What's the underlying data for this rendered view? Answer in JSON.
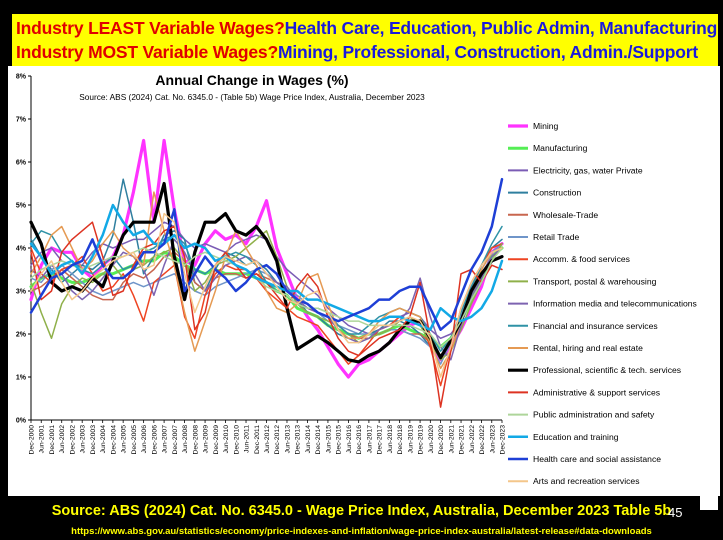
{
  "banner": {
    "line1_question": "Industry LEAST Variable Wages?",
    "line1_answer": "Health Care, Education, Public Admin, Manufacturing",
    "line2_question": "Industry MOST Variable Wages?",
    "line2_answer": "Mining, Professional, Construction, Admin./Support"
  },
  "footer": {
    "source": "Source: ABS (2024) Cat. No. 6345.0 - Wage Price Index, Australia, December 2023 Table 5b",
    "url": "https://www.abs.gov.au/statistics/economy/price-indexes-and-inflation/wage-price-index-australia/latest-release#data-downloads",
    "page_number": "45"
  },
  "chart_data": {
    "type": "line",
    "title": "Annual Change in Wages (%)",
    "subtitle": "Source: ABS (2024) Cat. No. 6345.0 - (Table 5b) Wage Price Index, Australia, December 2023",
    "xlabel": "",
    "ylabel": "",
    "ylim": [
      0,
      8
    ],
    "yticks": [
      "0%",
      "1%",
      "2%",
      "3%",
      "4%",
      "5%",
      "6%",
      "7%",
      "8%"
    ],
    "grid": false,
    "legend_position": "right",
    "categories": [
      "Dec-2000",
      "Jun-2001",
      "Dec-2001",
      "Jun-2002",
      "Dec-2002",
      "Jun-2003",
      "Dec-2003",
      "Jun-2004",
      "Dec-2004",
      "Jun-2005",
      "Dec-2005",
      "Jun-2006",
      "Dec-2006",
      "Jun-2007",
      "Dec-2007",
      "Jun-2008",
      "Dec-2008",
      "Jun-2009",
      "Dec-2009",
      "Jun-2010",
      "Dec-2010",
      "Jun-2011",
      "Dec-2011",
      "Jun-2012",
      "Dec-2012",
      "Jun-2013",
      "Dec-2013",
      "Jun-2014",
      "Dec-2014",
      "Jun-2015",
      "Dec-2015",
      "Jun-2016",
      "Dec-2016",
      "Jun-2017",
      "Dec-2017",
      "Jun-2018",
      "Dec-2018",
      "Jun-2019",
      "Dec-2019",
      "Jun-2020",
      "Dec-2020",
      "Jun-2021",
      "Dec-2021",
      "Jun-2022",
      "Dec-2022",
      "Jun-2023",
      "Dec-2023"
    ],
    "series": [
      {
        "name": "Mining",
        "color": "#ff33ff",
        "width": 3.2,
        "values": [
          2.8,
          3.6,
          4.0,
          3.9,
          3.9,
          3.5,
          3.3,
          3.6,
          3.8,
          4.3,
          5.3,
          6.5,
          4.6,
          6.5,
          4.9,
          3.7,
          3.6,
          4.1,
          4.4,
          4.2,
          4.3,
          4.1,
          4.5,
          5.1,
          4.0,
          3.4,
          2.8,
          2.4,
          2.1,
          1.7,
          1.3,
          1.0,
          1.3,
          1.4,
          1.6,
          1.8,
          2.0,
          2.2,
          2.3,
          1.8,
          1.4,
          1.7,
          2.1,
          2.6,
          3.1,
          3.9,
          4.1
        ]
      },
      {
        "name": "Manufacturing",
        "color": "#55ee55",
        "width": 3,
        "values": [
          3.1,
          3.3,
          3.4,
          3.3,
          3.2,
          3.2,
          3.3,
          3.4,
          3.4,
          3.5,
          3.6,
          3.7,
          3.7,
          3.9,
          3.8,
          3.6,
          3.5,
          3.4,
          3.5,
          3.4,
          3.4,
          3.4,
          3.3,
          3.2,
          3.0,
          2.9,
          2.6,
          2.5,
          2.4,
          2.2,
          2.1,
          2.0,
          1.9,
          2.0,
          2.0,
          2.1,
          2.2,
          2.1,
          2.0,
          1.9,
          1.7,
          1.9,
          2.3,
          2.8,
          3.3,
          3.8,
          4.0
        ]
      },
      {
        "name": "Electricity, gas, water Private",
        "color": "#7b5cb5",
        "width": 1.5,
        "values": [
          3.6,
          3.9,
          4.0,
          3.7,
          3.6,
          3.6,
          3.9,
          4.1,
          4.0,
          4.1,
          4.2,
          4.2,
          4.4,
          4.6,
          4.5,
          4.2,
          4.0,
          4.1,
          4.0,
          3.9,
          4.1,
          4.2,
          4.3,
          4.2,
          3.8,
          3.5,
          3.3,
          3.1,
          2.9,
          2.6,
          2.4,
          2.2,
          2.1,
          2.0,
          2.1,
          2.2,
          2.4,
          2.5,
          2.4,
          2.1,
          1.9,
          2.0,
          2.3,
          2.8,
          3.3,
          3.8,
          4.0
        ]
      },
      {
        "name": "Construction",
        "color": "#2f7f9f",
        "width": 1.5,
        "values": [
          4.2,
          3.8,
          3.5,
          3.2,
          3.4,
          3.6,
          3.5,
          3.7,
          4.3,
          5.6,
          4.6,
          3.4,
          3.8,
          4.3,
          4.4,
          4.2,
          3.2,
          3.0,
          3.5,
          3.9,
          3.8,
          3.6,
          3.7,
          3.5,
          3.2,
          3.0,
          2.8,
          2.5,
          2.4,
          2.2,
          2.0,
          1.9,
          1.9,
          2.0,
          2.1,
          2.3,
          2.3,
          2.2,
          2.0,
          1.7,
          1.5,
          1.8,
          2.4,
          3.0,
          3.6,
          4.0,
          4.2
        ]
      },
      {
        "name": "Wholesale-Trade",
        "color": "#c8664f",
        "width": 1.5,
        "values": [
          3.0,
          3.1,
          3.3,
          3.5,
          3.3,
          3.1,
          2.9,
          2.8,
          2.8,
          3.2,
          3.4,
          3.3,
          3.5,
          3.8,
          3.9,
          3.7,
          3.2,
          3.0,
          3.3,
          3.4,
          3.4,
          3.3,
          3.4,
          3.3,
          3.2,
          3.0,
          2.8,
          2.6,
          2.5,
          2.4,
          2.2,
          2.0,
          1.9,
          1.9,
          2.0,
          2.1,
          2.1,
          2.0,
          2.0,
          1.8,
          1.5,
          1.8,
          2.3,
          2.9,
          3.4,
          3.7,
          3.8
        ]
      },
      {
        "name": "Retail Trade",
        "color": "#6f95c9",
        "width": 1.5,
        "values": [
          3.3,
          3.2,
          3.5,
          3.6,
          3.4,
          3.2,
          3.0,
          2.9,
          3.0,
          3.1,
          3.2,
          3.1,
          3.2,
          3.3,
          3.4,
          3.2,
          3.0,
          2.9,
          3.1,
          3.2,
          3.3,
          3.4,
          3.5,
          3.4,
          3.2,
          3.0,
          2.9,
          2.7,
          2.5,
          2.3,
          2.2,
          2.1,
          2.0,
          2.0,
          2.0,
          2.1,
          2.1,
          2.0,
          1.9,
          1.7,
          1.3,
          1.8,
          2.4,
          3.0,
          3.5,
          3.9,
          4.1
        ]
      },
      {
        "name": "Accomm. & food services",
        "color": "#ee4422",
        "width": 1.5,
        "values": [
          4.0,
          3.4,
          3.2,
          3.5,
          3.6,
          3.8,
          3.4,
          3.0,
          3.1,
          3.4,
          2.9,
          2.3,
          3.2,
          3.4,
          3.6,
          2.4,
          1.9,
          2.9,
          3.4,
          3.6,
          3.5,
          3.5,
          3.3,
          3.0,
          2.8,
          2.6,
          2.4,
          2.3,
          2.2,
          1.9,
          1.6,
          1.3,
          1.5,
          1.8,
          2.1,
          2.2,
          2.4,
          2.3,
          2.3,
          1.7,
          0.8,
          1.7,
          2.6,
          3.2,
          3.6,
          4.0,
          4.1
        ]
      },
      {
        "name": "Transport, postal & warehousing",
        "color": "#8fb04a",
        "width": 1.5,
        "values": [
          3.2,
          2.5,
          1.9,
          2.7,
          3.1,
          3.3,
          3.2,
          3.4,
          3.6,
          3.3,
          3.5,
          3.6,
          3.8,
          3.9,
          4.0,
          3.7,
          3.0,
          3.2,
          3.6,
          3.7,
          3.8,
          4.0,
          4.2,
          4.4,
          3.8,
          3.1,
          2.7,
          2.5,
          2.4,
          2.3,
          2.2,
          2.0,
          1.8,
          1.9,
          2.0,
          2.1,
          2.3,
          2.4,
          2.2,
          1.8,
          1.4,
          1.6,
          2.1,
          2.7,
          3.2,
          3.7,
          4.1
        ]
      },
      {
        "name": "Information media and telecommunications",
        "color": "#7d63b0",
        "width": 1.5,
        "values": [
          3.5,
          3.3,
          3.6,
          3.4,
          3.0,
          2.8,
          3.0,
          3.3,
          3.6,
          3.9,
          3.8,
          3.5,
          2.9,
          3.6,
          4.2,
          3.9,
          3.4,
          3.0,
          3.3,
          3.6,
          3.7,
          3.8,
          3.7,
          3.4,
          3.2,
          3.1,
          2.8,
          2.6,
          2.5,
          2.4,
          2.1,
          1.9,
          1.8,
          1.9,
          2.1,
          2.2,
          2.3,
          2.6,
          3.3,
          2.4,
          1.7,
          1.4,
          2.2,
          2.9,
          3.4,
          3.8,
          4.0
        ]
      },
      {
        "name": "Financial and insurance services",
        "color": "#2f92a6",
        "width": 1.5,
        "values": [
          4.1,
          4.4,
          4.3,
          3.9,
          3.7,
          3.5,
          3.4,
          3.6,
          3.8,
          3.5,
          3.6,
          3.9,
          4.0,
          4.2,
          4.3,
          4.1,
          3.5,
          3.4,
          3.6,
          3.8,
          3.9,
          3.8,
          3.6,
          3.2,
          3.0,
          2.9,
          2.7,
          2.6,
          2.6,
          2.5,
          2.2,
          2.0,
          2.0,
          2.2,
          2.4,
          2.5,
          2.6,
          2.5,
          2.4,
          2.0,
          1.6,
          1.9,
          2.5,
          3.1,
          3.6,
          4.1,
          4.5
        ]
      },
      {
        "name": "Rental, hiring and real estate",
        "color": "#e59a53",
        "width": 1.5,
        "values": [
          3.4,
          3.8,
          4.3,
          4.5,
          4.0,
          3.5,
          3.7,
          4.1,
          4.4,
          4.0,
          3.8,
          3.6,
          5.3,
          4.4,
          3.6,
          2.5,
          1.6,
          2.3,
          3.0,
          3.8,
          4.4,
          4.0,
          3.6,
          3.0,
          2.6,
          2.5,
          2.7,
          3.3,
          3.4,
          2.7,
          2.1,
          1.9,
          1.9,
          2.0,
          2.3,
          2.5,
          2.6,
          2.5,
          2.4,
          1.8,
          1.2,
          1.6,
          2.3,
          3.0,
          3.5,
          3.9,
          4.0
        ]
      },
      {
        "name": "Professional, scientific & tech. services",
        "color": "#000000",
        "width": 3.2,
        "values": [
          4.6,
          4.1,
          3.2,
          3.0,
          3.1,
          3.0,
          3.3,
          3.1,
          3.7,
          4.3,
          4.6,
          4.6,
          4.6,
          5.5,
          3.8,
          2.8,
          3.9,
          4.6,
          4.6,
          4.8,
          4.4,
          4.3,
          4.5,
          4.2,
          3.7,
          2.6,
          1.65,
          1.8,
          1.95,
          1.8,
          1.6,
          1.4,
          1.35,
          1.5,
          1.6,
          1.8,
          2.1,
          2.3,
          2.3,
          1.9,
          1.45,
          1.85,
          2.3,
          3.0,
          3.4,
          3.7,
          3.8
        ]
      },
      {
        "name": "Administrative & support services",
        "color": "#dd3322",
        "width": 1.5,
        "values": [
          3.9,
          2.8,
          3.0,
          3.9,
          4.2,
          4.4,
          4.6,
          3.8,
          2.9,
          3.0,
          3.6,
          4.0,
          4.1,
          4.4,
          4.5,
          3.8,
          2.1,
          2.5,
          3.6,
          3.9,
          3.6,
          3.3,
          3.4,
          3.2,
          2.9,
          2.6,
          3.1,
          3.4,
          3.1,
          2.4,
          1.9,
          1.6,
          1.5,
          1.7,
          1.9,
          2.0,
          2.1,
          2.4,
          3.2,
          1.9,
          0.3,
          1.6,
          3.4,
          3.5,
          3.2,
          3.6,
          3.5
        ]
      },
      {
        "name": "Public administration and safety",
        "color": "#aed59a",
        "width": 1.5,
        "values": [
          3.3,
          3.5,
          3.6,
          3.7,
          3.6,
          3.5,
          3.6,
          3.7,
          3.8,
          3.8,
          3.9,
          4.0,
          3.9,
          3.8,
          3.7,
          3.6,
          3.8,
          3.9,
          3.8,
          3.7,
          3.6,
          3.5,
          3.3,
          3.1,
          3.0,
          2.9,
          2.7,
          2.6,
          2.6,
          2.5,
          2.4,
          2.3,
          2.3,
          2.2,
          2.2,
          2.2,
          2.2,
          2.2,
          2.1,
          2.0,
          1.7,
          1.9,
          2.3,
          2.8,
          3.2,
          3.7,
          4.0
        ]
      },
      {
        "name": "Education and training",
        "color": "#12a9e6",
        "width": 2.5,
        "values": [
          4.1,
          3.8,
          3.4,
          3.6,
          3.7,
          3.4,
          3.8,
          4.3,
          5.0,
          4.6,
          4.3,
          4.4,
          4.1,
          4.1,
          4.3,
          4.0,
          4.1,
          4.0,
          3.7,
          3.8,
          3.6,
          3.5,
          3.3,
          3.2,
          3.1,
          3.0,
          3.0,
          2.8,
          2.8,
          2.7,
          2.6,
          2.5,
          2.4,
          2.3,
          2.3,
          2.4,
          2.4,
          2.3,
          2.2,
          2.1,
          2.6,
          2.4,
          2.3,
          2.4,
          2.6,
          3.0,
          3.7
        ]
      },
      {
        "name": "Health care and social assistance",
        "color": "#1e3fd6",
        "width": 2.5,
        "values": [
          2.5,
          2.9,
          3.3,
          3.4,
          3.6,
          3.7,
          4.2,
          3.6,
          3.3,
          3.3,
          3.5,
          3.9,
          3.9,
          4.1,
          4.9,
          3.0,
          3.4,
          3.8,
          3.5,
          3.3,
          3.0,
          3.2,
          3.5,
          3.6,
          3.4,
          3.0,
          2.8,
          2.7,
          2.5,
          2.4,
          2.3,
          2.4,
          2.5,
          2.6,
          2.8,
          2.8,
          3.0,
          3.1,
          3.1,
          2.6,
          2.1,
          2.3,
          2.9,
          3.5,
          3.9,
          4.5,
          5.6
        ]
      },
      {
        "name": "Arts and recreation services",
        "color": "#f4c68a",
        "width": 1.5,
        "values": [
          3.0,
          3.4,
          3.7,
          3.2,
          2.8,
          3.0,
          3.3,
          3.5,
          3.7,
          3.8,
          3.9,
          3.5,
          3.6,
          4.8,
          4.6,
          3.4,
          2.5,
          3.1,
          3.6,
          3.8,
          3.7,
          3.6,
          3.7,
          3.4,
          3.1,
          2.8,
          2.7,
          2.9,
          3.0,
          2.5,
          2.1,
          1.8,
          1.8,
          2.0,
          2.2,
          2.2,
          2.3,
          2.4,
          2.3,
          1.9,
          1.0,
          1.7,
          2.6,
          3.2,
          3.6,
          3.9,
          4.0
        ]
      }
    ]
  }
}
